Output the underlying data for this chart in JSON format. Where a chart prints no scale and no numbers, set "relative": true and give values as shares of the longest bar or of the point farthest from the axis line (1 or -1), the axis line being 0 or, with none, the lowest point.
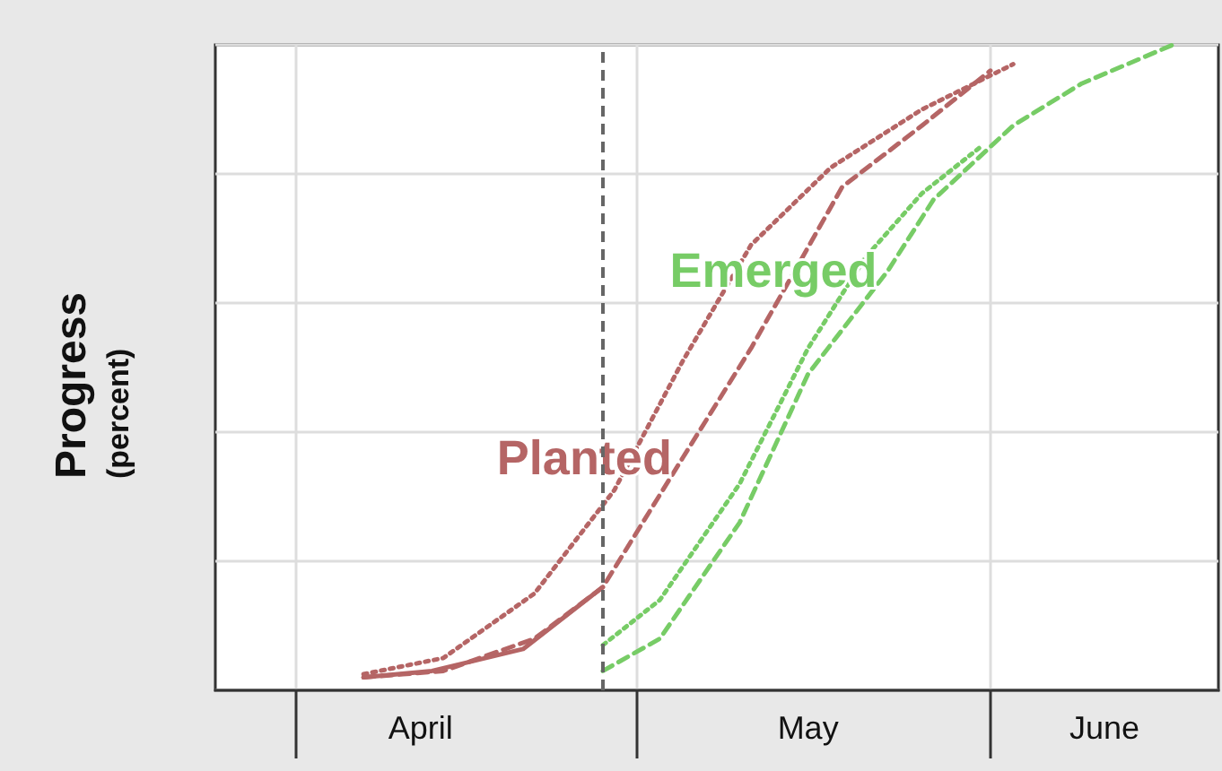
{
  "chart_data": {
    "type": "line",
    "ylabel": "Progress\n(percent)",
    "relative": true,
    "grid": true,
    "xlim": [
      "--03-25",
      "--06-21"
    ],
    "xticks": [
      {
        "value": "--04-01",
        "label": null
      },
      {
        "value": "--04-12",
        "label": "April"
      },
      {
        "value": "--05-01",
        "label": null
      },
      {
        "value": "--05-16",
        "label": "May"
      },
      {
        "value": "--06-01",
        "label": null
      },
      {
        "value": "--06-11",
        "label": "June"
      }
    ],
    "series": [
      {
        "color": "#b56565",
        "line_style": "solid",
        "x": [
          "--04-07",
          "--04-13",
          "--04-21",
          "--04-28"
        ],
        "values": [
          0.02,
          0.03,
          0.064,
          0.16
        ]
      },
      {
        "name": "Planted",
        "color": "#b56565",
        "line_style": "dashed",
        "x": [
          "--04-07",
          "--04-14",
          "--04-22",
          "--04-28",
          "--05-05",
          "--05-11",
          "--05-19",
          "--05-26",
          "--06-01"
        ],
        "values": [
          0.02,
          0.03,
          0.08,
          0.16,
          0.36,
          0.53,
          0.78,
          0.875,
          0.96
        ]
      },
      {
        "color": "#b56565",
        "line_style": "dotted",
        "x": [
          "--04-07",
          "--04-14",
          "--04-22",
          "--04-29",
          "--05-05",
          "--05-11",
          "--05-18",
          "--05-26",
          "--06-03"
        ],
        "values": [
          0.025,
          0.05,
          0.15,
          0.31,
          0.51,
          0.69,
          0.81,
          0.9,
          0.97
        ]
      },
      {
        "name": "Emerged",
        "color": "#77cc66",
        "line_style": "dashed",
        "x": [
          "--04-28",
          "--05-03",
          "--05-10",
          "--05-16",
          "--05-23",
          "--05-27",
          "--06-03",
          "--06-09",
          "--06-17"
        ],
        "values": [
          0.03,
          0.08,
          0.26,
          0.49,
          0.65,
          0.76,
          0.875,
          0.94,
          1
        ]
      },
      {
        "color": "#77cc66",
        "line_style": "dotted",
        "x": [
          "--04-28",
          "--05-03",
          "--05-10",
          "--05-16",
          "--05-21",
          "--05-26",
          "--05-31"
        ],
        "values": [
          0.07,
          0.14,
          0.32,
          0.53,
          0.67,
          0.77,
          0.84
        ]
      }
    ],
    "ref_lines": [
      {
        "axis": "x",
        "value": "--04-28",
        "color": "#666666",
        "line_style": "dashed"
      }
    ]
  }
}
